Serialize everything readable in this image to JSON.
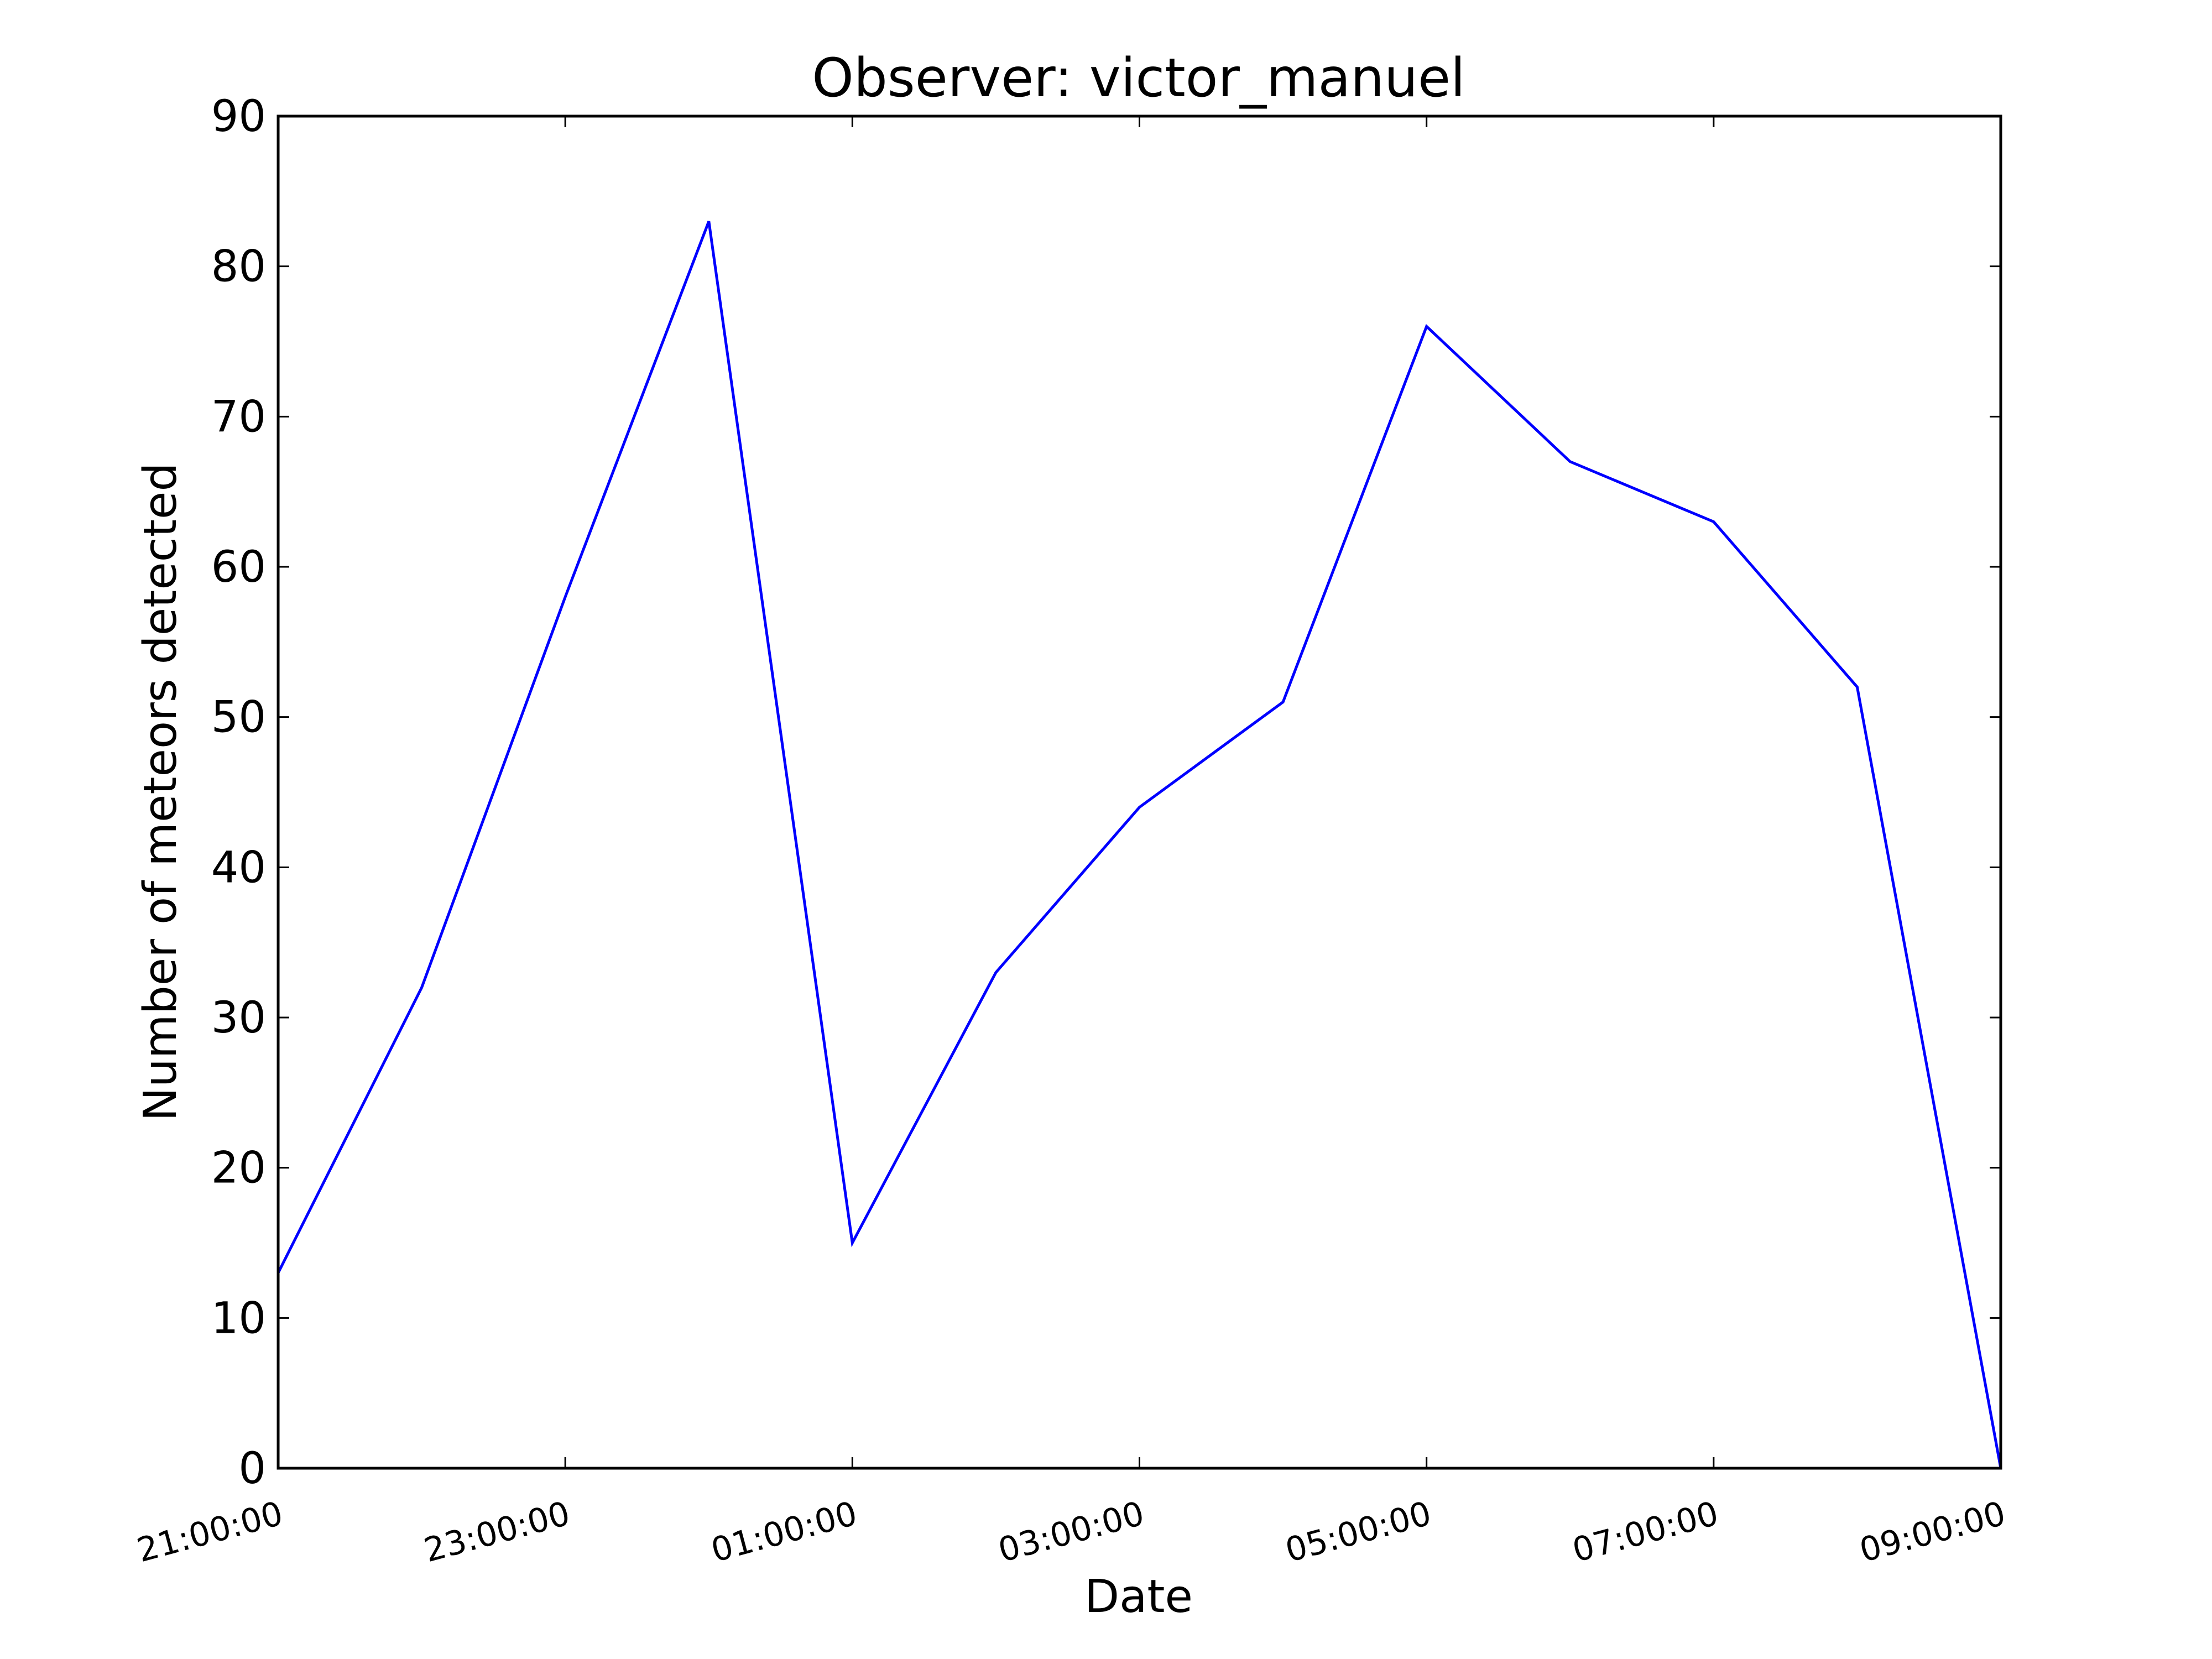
{
  "chart_data": {
    "type": "line",
    "title": "Observer: victor_manuel",
    "xlabel": "Date",
    "ylabel": "Number of meteors detected",
    "x_ticks": [
      "21:00:00",
      "23:00:00",
      "01:00:00",
      "03:00:00",
      "05:00:00",
      "07:00:00",
      "09:00:00"
    ],
    "y_ticks": [
      "0",
      "10",
      "20",
      "30",
      "40",
      "50",
      "60",
      "70",
      "80",
      "90"
    ],
    "ylim": [
      0,
      90
    ],
    "xlim": [
      "21:00:00",
      "09:00:00"
    ],
    "grid": false,
    "legend": "none",
    "series": [
      {
        "color": "#0000ff",
        "x": [
          "21:00:00",
          "22:00:00",
          "23:00:00",
          "00:00:00",
          "01:00:00",
          "02:00:00",
          "03:00:00",
          "04:00:00",
          "05:00:00",
          "06:00:00",
          "07:00:00",
          "08:00:00",
          "09:00:00"
        ],
        "values": [
          13,
          32,
          58,
          83,
          15,
          33,
          44,
          51,
          76,
          67,
          63,
          52,
          0
        ]
      }
    ]
  }
}
